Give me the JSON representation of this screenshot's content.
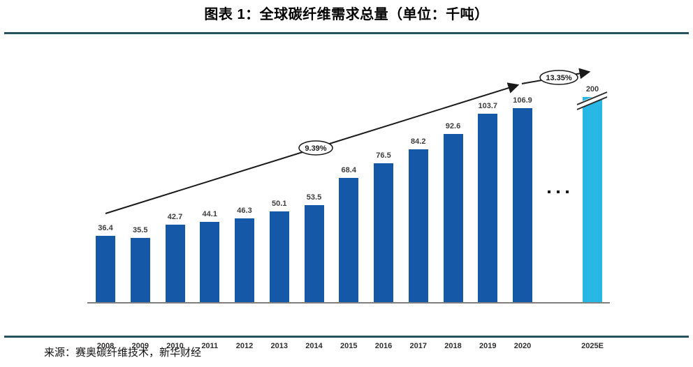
{
  "title": "图表 1：全球碳纤维需求总量（单位：千吨）",
  "source": "来源：赛奥碳纤维技术，新华财经",
  "chart_data": {
    "type": "bar",
    "title": "全球碳纤维需求总量",
    "unit": "千吨",
    "categories": [
      "2008",
      "2009",
      "2010",
      "2011",
      "2012",
      "2013",
      "2014",
      "2015",
      "2016",
      "2017",
      "2018",
      "2019",
      "2020",
      "2025E"
    ],
    "values": [
      36.4,
      35.5,
      42.7,
      44.1,
      46.3,
      50.1,
      53.5,
      68.4,
      76.5,
      84.2,
      92.6,
      103.7,
      106.9,
      200
    ],
    "value_labels": [
      "36.4",
      "35.5",
      "42.7",
      "44.1",
      "46.3",
      "50.1",
      "53.5",
      "68.4",
      "76.5",
      "84.2",
      "92.6",
      "103.7",
      "106.9",
      "200"
    ],
    "forecast_index": 13,
    "axis_break_on_forecast": true,
    "grid": false,
    "legend": false,
    "annotations": [
      {
        "label": "9.39%",
        "meaning": "CAGR marker on trend arrow"
      },
      {
        "label": "13.35%",
        "meaning": "CAGR marker on trend arrow"
      }
    ],
    "colors": {
      "bar": "#1558A8",
      "forecast_bar": "#29B8E5",
      "rule": "#26525E",
      "axis": "#7F7F7F",
      "trend_line": "#1a1a1a"
    }
  }
}
